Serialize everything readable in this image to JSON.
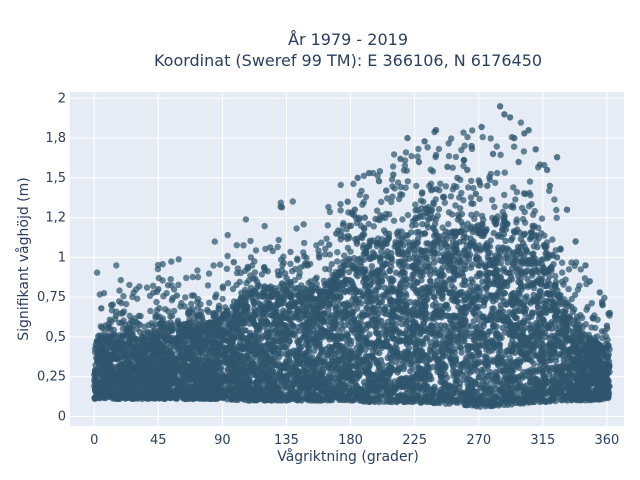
{
  "chart_data": {
    "type": "scatter",
    "title_line1": "År 1979 - 2019",
    "title_line2": "Koordinat (Sweref 99 TM): E 366106, N 6176450",
    "xlabel": "Vågriktning (grader)",
    "ylabel": "Signifikant våghöjd (m)",
    "xlim": [
      -17,
      372
    ],
    "ylim": [
      -0.06,
      2.04
    ],
    "x_ticks": [
      0,
      45,
      90,
      135,
      180,
      225,
      270,
      315,
      360
    ],
    "x_tick_labels": [
      "0",
      "45",
      "90",
      "135",
      "180",
      "225",
      "270",
      "315",
      "360"
    ],
    "y_ticks": [
      0,
      0.25,
      0.5,
      0.75,
      1,
      1.25,
      1.5,
      1.75,
      2
    ],
    "y_tick_labels": [
      "0",
      "0,25",
      "0,5",
      "0,75",
      "1",
      "1,2",
      "1,5",
      "1,8",
      "2"
    ],
    "grid": true,
    "colors": {
      "marker": "#2f566e",
      "plot_bg": "#e5ecf6",
      "grid": "#ffffff"
    },
    "envelope": {
      "x": [
        0,
        15,
        30,
        45,
        60,
        75,
        90,
        105,
        120,
        135,
        150,
        165,
        180,
        195,
        210,
        225,
        240,
        255,
        270,
        285,
        300,
        315,
        330,
        345,
        360
      ],
      "upper_dense": [
        0.5,
        0.52,
        0.5,
        0.55,
        0.57,
        0.6,
        0.65,
        0.75,
        0.8,
        0.82,
        0.78,
        0.85,
        1.0,
        1.1,
        1.12,
        1.15,
        1.15,
        1.18,
        1.2,
        1.25,
        1.18,
        1.05,
        0.7,
        0.5,
        0.45
      ],
      "lower": [
        0.11,
        0.11,
        0.11,
        0.11,
        0.11,
        0.11,
        0.11,
        0.1,
        0.1,
        0.1,
        0.1,
        0.1,
        0.1,
        0.09,
        0.09,
        0.09,
        0.08,
        0.08,
        0.06,
        0.07,
        0.08,
        0.09,
        0.1,
        0.1,
        0.11
      ]
    },
    "outliers": [
      {
        "x": 285,
        "y": 1.95
      },
      {
        "x": 292,
        "y": 1.88
      },
      {
        "x": 288,
        "y": 1.9
      },
      {
        "x": 305,
        "y": 1.8
      },
      {
        "x": 302,
        "y": 1.78
      },
      {
        "x": 272,
        "y": 1.82
      },
      {
        "x": 295,
        "y": 1.75
      },
      {
        "x": 265,
        "y": 1.7
      },
      {
        "x": 240,
        "y": 1.8
      },
      {
        "x": 232,
        "y": 1.73
      },
      {
        "x": 220,
        "y": 1.75
      },
      {
        "x": 215,
        "y": 1.62
      },
      {
        "x": 280,
        "y": 1.65
      },
      {
        "x": 310,
        "y": 1.68
      },
      {
        "x": 318,
        "y": 1.55
      },
      {
        "x": 325,
        "y": 1.63
      },
      {
        "x": 193,
        "y": 1.53
      },
      {
        "x": 185,
        "y": 1.5
      },
      {
        "x": 200,
        "y": 1.48
      },
      {
        "x": 255,
        "y": 1.5
      },
      {
        "x": 248,
        "y": 1.57
      },
      {
        "x": 262,
        "y": 1.55
      },
      {
        "x": 228,
        "y": 1.6
      },
      {
        "x": 210,
        "y": 1.52
      },
      {
        "x": 320,
        "y": 1.45
      },
      {
        "x": 178,
        "y": 1.35
      },
      {
        "x": 183,
        "y": 1.3
      },
      {
        "x": 170,
        "y": 1.15
      },
      {
        "x": 165,
        "y": 1.08
      },
      {
        "x": 158,
        "y": 1.0
      },
      {
        "x": 150,
        "y": 0.95
      },
      {
        "x": 98,
        "y": 0.97
      },
      {
        "x": 108,
        "y": 0.93
      },
      {
        "x": 120,
        "y": 0.92
      },
      {
        "x": 135,
        "y": 0.87
      },
      {
        "x": 45,
        "y": 0.8
      },
      {
        "x": 58,
        "y": 0.76
      },
      {
        "x": 70,
        "y": 0.76
      },
      {
        "x": 85,
        "y": 0.75
      },
      {
        "x": 12,
        "y": 0.7
      },
      {
        "x": 5,
        "y": 0.68
      },
      {
        "x": 20,
        "y": 0.65
      },
      {
        "x": 332,
        "y": 1.3
      },
      {
        "x": 338,
        "y": 1.1
      },
      {
        "x": 345,
        "y": 0.95
      },
      {
        "x": 348,
        "y": 0.85
      },
      {
        "x": 355,
        "y": 0.78
      },
      {
        "x": 357,
        "y": 0.7
      },
      {
        "x": 362,
        "y": 0.65
      },
      {
        "x": 360,
        "y": 0.57
      },
      {
        "x": 350,
        "y": 0.62
      },
      {
        "x": 325,
        "y": 1.0
      },
      {
        "x": 298,
        "y": 1.6
      },
      {
        "x": 276,
        "y": 1.45
      },
      {
        "x": 268,
        "y": 1.4
      },
      {
        "x": 245,
        "y": 1.38
      },
      {
        "x": 205,
        "y": 1.42
      },
      {
        "x": 190,
        "y": 1.25
      },
      {
        "x": 235,
        "y": 1.3
      }
    ]
  }
}
